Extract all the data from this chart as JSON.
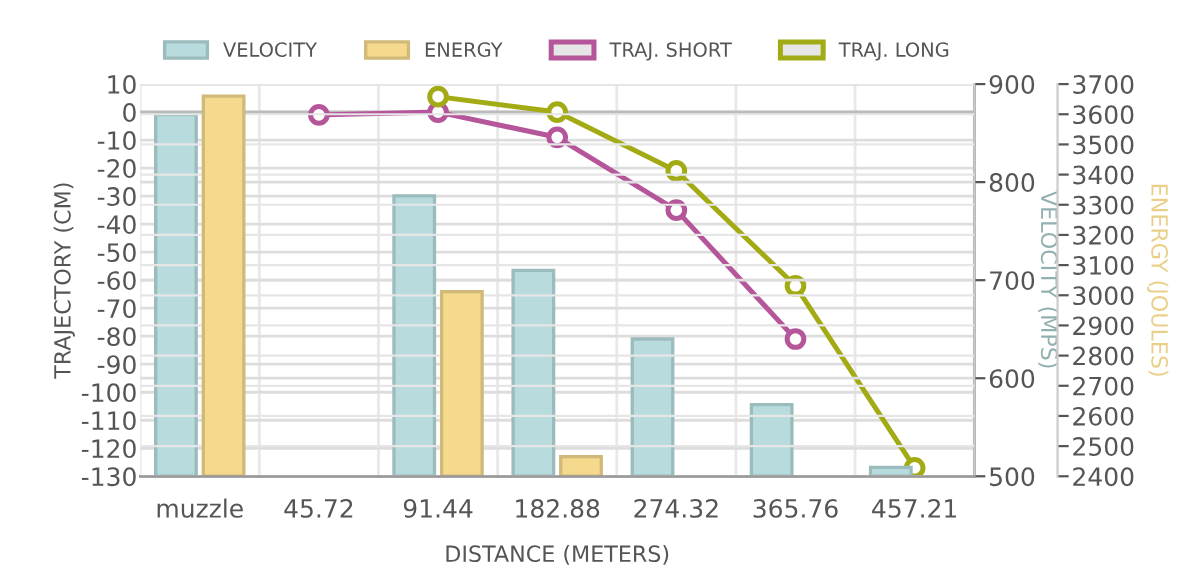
{
  "chart_data": {
    "type": "bar",
    "xlabel": "DISTANCE (METERS)",
    "ylabel": "TRAJECTORY (CM)",
    "y2label": "VELOCITY (MPS)",
    "y3label": "ENERGY (JOULES)",
    "categories": [
      "muzzle",
      "45.72",
      "91.44",
      "182.88",
      "274.32",
      "365.76",
      "457.21"
    ],
    "series": [
      {
        "name": "VELOCITY",
        "axis": "y2",
        "color": "#b8dcdd",
        "values": [
          869,
          null,
          786,
          710,
          640,
          573,
          509
        ]
      },
      {
        "name": "ENERGY",
        "axis": "y3",
        "color": "#f5da8e",
        "values": [
          3660,
          null,
          3012,
          2465,
          null,
          null,
          null
        ]
      },
      {
        "name": "TRAJ. SHORT",
        "type": "line",
        "axis": "y",
        "color": "#b5569a",
        "values": [
          null,
          -1,
          0,
          -9,
          -35,
          -81,
          null
        ]
      },
      {
        "name": "TRAJ. LONG",
        "type": "line",
        "axis": "y",
        "color": "#a3ab14",
        "values": [
          null,
          null,
          5.5,
          0,
          -21,
          -62,
          -127
        ]
      }
    ],
    "ylim": [
      -130,
      10
    ],
    "yticks": [
      -130,
      -120,
      -110,
      -100,
      -90,
      -80,
      -70,
      -60,
      -50,
      -40,
      -30,
      -20,
      -10,
      0,
      10
    ],
    "y2lim": [
      500,
      900
    ],
    "y2ticks": [
      500,
      600,
      700,
      800,
      900
    ],
    "y3lim": [
      2400,
      3700
    ],
    "y3ticks": [
      2400,
      2500,
      2600,
      2700,
      2800,
      2900,
      3000,
      3100,
      3200,
      3300,
      3400,
      3500,
      3600,
      3700
    ],
    "grid": true,
    "legend": "top",
    "marker": "circle",
    "line_style": "solid"
  }
}
